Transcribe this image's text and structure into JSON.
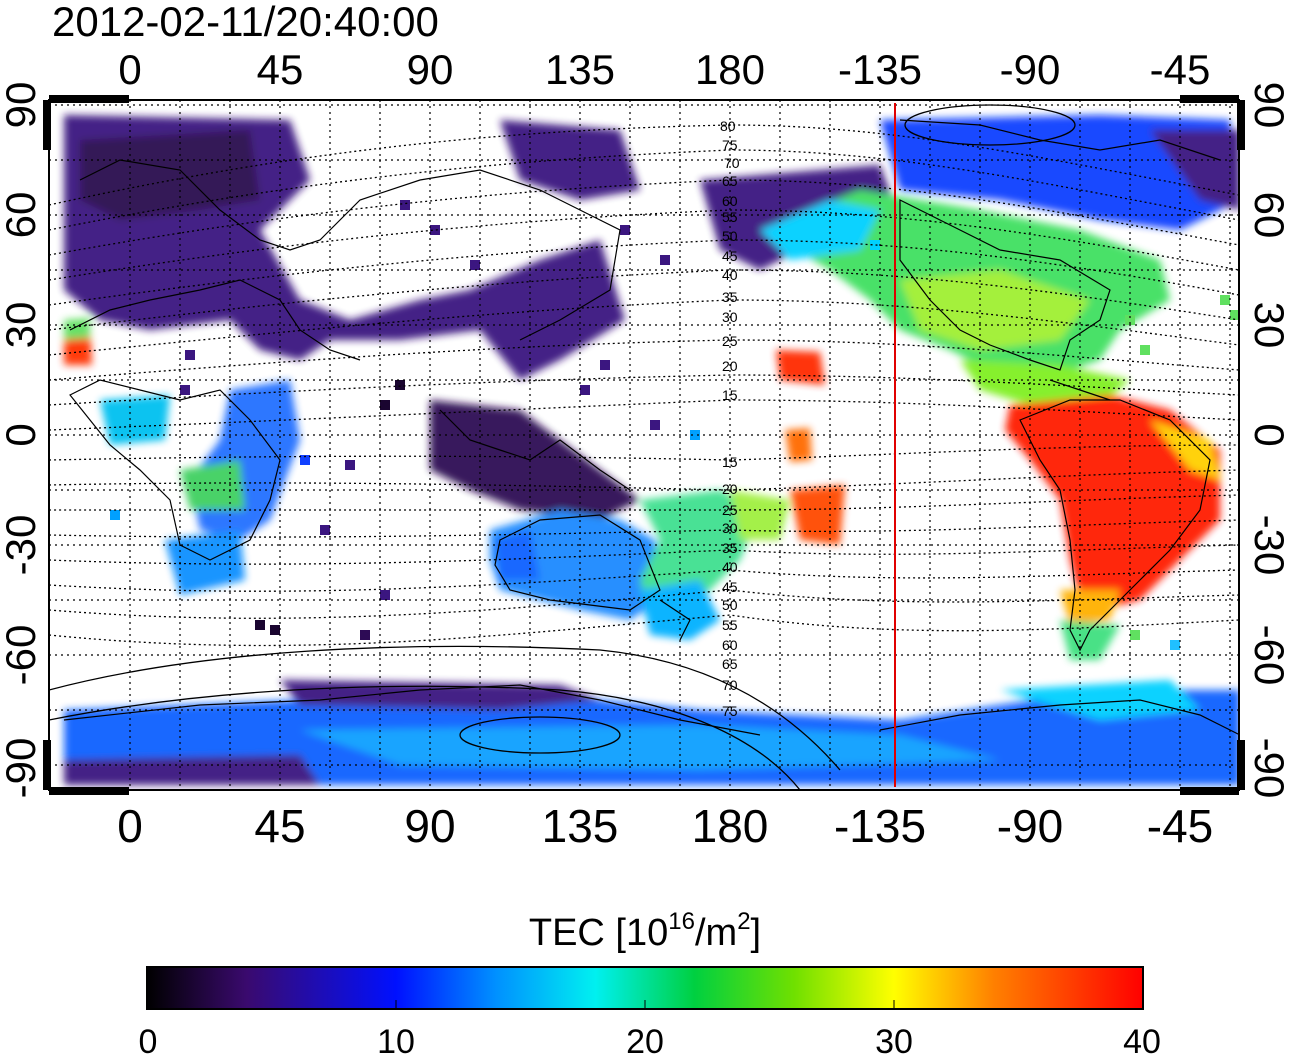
{
  "timestamp": "2012-02-11/20:40:00",
  "map": {
    "x_ticks": [
      "0",
      "45",
      "90",
      "135",
      "180",
      "-135",
      "-90",
      "-45"
    ],
    "y_ticks": [
      "90",
      "60",
      "30",
      "0",
      "-30",
      "-60",
      "-90"
    ],
    "marker_longitude": -135,
    "marker_color": "#e00000",
    "contour_labels_north": [
      "80",
      "75",
      "70",
      "65",
      "60",
      "55",
      "50",
      "45",
      "40",
      "35",
      "30",
      "25",
      "20",
      "15"
    ],
    "contour_labels_south": [
      "15",
      "20",
      "25",
      "30",
      "35",
      "40",
      "45",
      "50",
      "55",
      "60",
      "65",
      "70",
      "75"
    ]
  },
  "colorbar": {
    "label_prefix": "TEC  [10",
    "label_exp1": "16",
    "label_mid": "/m",
    "label_exp2": "2",
    "label_suffix": "]",
    "ticks": [
      "0",
      "10",
      "20",
      "30",
      "40"
    ],
    "range": [
      0,
      40
    ],
    "stops": [
      "#000000",
      "#3a0a6e",
      "#0010ff",
      "#00a8ff",
      "#00f0f0",
      "#00d040",
      "#60e000",
      "#ffff00",
      "#ff8000",
      "#ff0000"
    ]
  },
  "regions": [
    {
      "name": "europe-asia",
      "tec": 4
    },
    {
      "name": "north-america",
      "tec": 23
    },
    {
      "name": "south-america",
      "tec": 38
    },
    {
      "name": "australia",
      "tec": 13
    },
    {
      "name": "antarctica-band",
      "tec": 10
    }
  ]
}
